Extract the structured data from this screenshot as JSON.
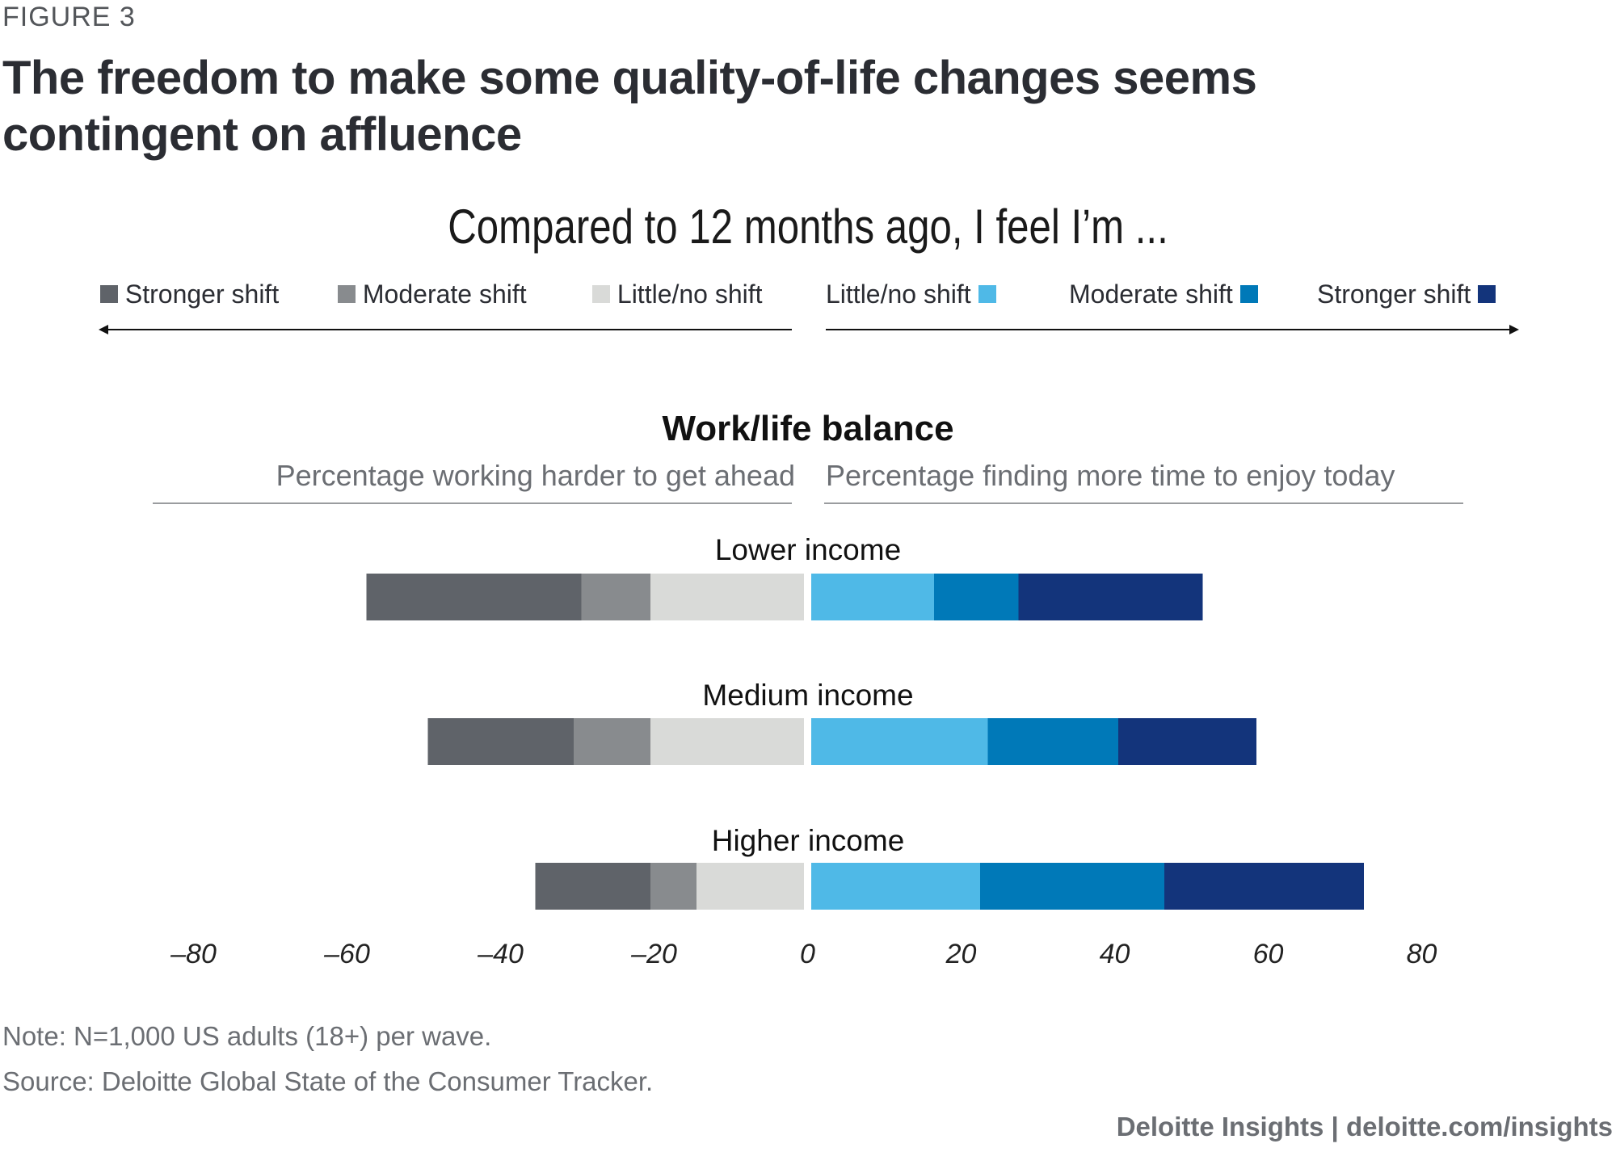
{
  "figure_label": "FIGURE 3",
  "title": "The freedom to make some quality-of-life changes seems contingent on affluence",
  "subtitle": "Compared to 12 months ago, I feel I’m ...",
  "legend": [
    {
      "label": "Stronger shift",
      "color": "#5f6369",
      "side": "left"
    },
    {
      "label": "Moderate shift",
      "color": "#888b8e",
      "side": "left"
    },
    {
      "label": "Little/no shift",
      "color": "#d9dad8",
      "side": "left"
    },
    {
      "label": "Little/no shift",
      "color": "#4fb9e7",
      "side": "right"
    },
    {
      "label": "Moderate shift",
      "color": "#0079b8",
      "side": "right"
    },
    {
      "label": "Stronger shift",
      "color": "#13347b",
      "side": "right"
    }
  ],
  "panel": {
    "title": "Work/life balance",
    "left_subtitle": "Percentage working harder to get ahead",
    "right_subtitle": "Percentage finding more time to enjoy today"
  },
  "chart_data": {
    "type": "bar",
    "orientation": "horizontal-diverging",
    "title": "Work/life balance",
    "categories": [
      "Lower income",
      "Medium income",
      "Higher income"
    ],
    "left_label": "Percentage working harder to get ahead",
    "right_label": "Percentage finding more time to enjoy today",
    "series": [
      {
        "name": "Stronger shift",
        "side": "left",
        "color": "#5f6369",
        "values": [
          28,
          19,
          15
        ]
      },
      {
        "name": "Moderate shift",
        "side": "left",
        "color": "#888b8e",
        "values": [
          9,
          10,
          6
        ]
      },
      {
        "name": "Little/no shift",
        "side": "left",
        "color": "#d9dad8",
        "values": [
          20,
          20,
          14
        ]
      },
      {
        "name": "Little/no shift",
        "side": "right",
        "color": "#4fb9e7",
        "values": [
          16,
          23,
          22
        ]
      },
      {
        "name": "Moderate shift",
        "side": "right",
        "color": "#0079b8",
        "values": [
          11,
          17,
          24
        ]
      },
      {
        "name": "Stronger shift",
        "side": "right",
        "color": "#13347b",
        "values": [
          24,
          18,
          26
        ]
      }
    ],
    "xlim": [
      -80,
      80
    ],
    "ticks": [
      -80,
      -60,
      -40,
      -20,
      0,
      20,
      40,
      60,
      80
    ],
    "tick_labels": [
      "–80",
      "–60",
      "–40",
      "–20",
      "0",
      "20",
      "40",
      "60",
      "80"
    ]
  },
  "note": "Note: N=1,000 US adults (18+) per wave.",
  "source": "Source: Deloitte Global State of the Consumer Tracker.",
  "footer": "Deloitte Insights | deloitte.com/insights"
}
